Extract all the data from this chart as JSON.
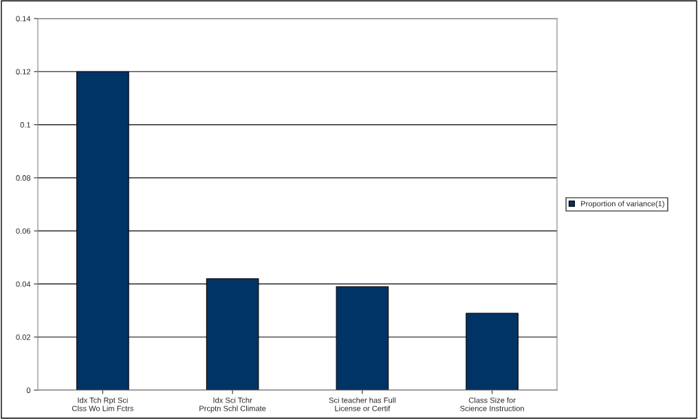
{
  "chart_data": {
    "type": "bar",
    "categories": [
      "Idx Tch Rpt Sci Clss Wo Lim Fctrs",
      "Idx Sci Tchr Prcptn Schl Climate",
      "Sci teacher has Full License or Certif",
      "Class Size for Science Instruction"
    ],
    "series": [
      {
        "name": "Proportion of variance(1)",
        "color": "#003366",
        "values": [
          0.12,
          0.042,
          0.039,
          0.029
        ]
      }
    ],
    "ylim": [
      0,
      0.14
    ],
    "yticks": [
      0,
      0.02,
      0.04,
      0.06,
      0.08,
      0.1,
      0.12,
      0.14
    ],
    "grid": "y",
    "legend": "right"
  }
}
